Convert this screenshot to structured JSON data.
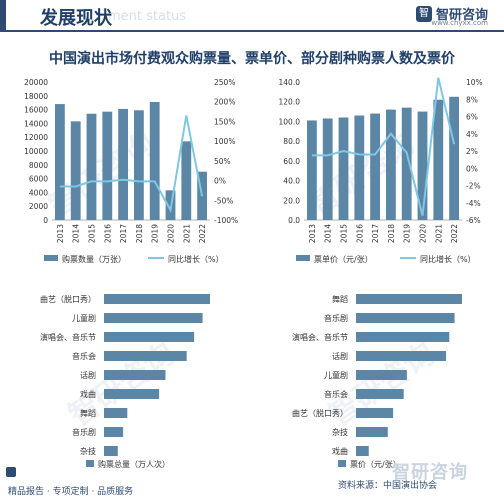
{
  "header": {
    "title": "发展现状",
    "ghost_text": "ment status",
    "brand": "智研咨询",
    "url": "www.chyxx.com"
  },
  "main_title": "中国演出市场付费观众购票量、票单价、部分剧种购票人数及票价",
  "footer": {
    "links": "精品报告 · 专项定制 · 品质服务",
    "source": "资料来源：中国演出协会",
    "brand": "智研咨询"
  },
  "watermark": "智研咨询",
  "colors": {
    "bar": "#5b86a6",
    "line": "#7ec8e3",
    "axis_text": "#333333",
    "grid": "#dddddd",
    "title": "#1f3e68",
    "brand_dark": "#2f4b73"
  },
  "chart_data": [
    {
      "type": "bar",
      "categories": [
        "2013",
        "2014",
        "2015",
        "2016",
        "2017",
        "2018",
        "2019",
        "2020",
        "2021",
        "2022"
      ],
      "series": [
        {
          "name": "购票数量（万张）",
          "axis": "left",
          "values": [
            16800,
            14300,
            15400,
            15700,
            16100,
            15900,
            17100,
            4300,
            11400,
            7000
          ]
        },
        {
          "name": "同比增长（%）",
          "axis": "right",
          "type": "line",
          "values": [
            -15,
            -15,
            -2,
            -2,
            2,
            -2,
            -2,
            -75,
            165,
            -40
          ]
        }
      ],
      "ylim_left": [
        0,
        20000
      ],
      "yticks_left": [
        "0",
        "2000",
        "4000",
        "6000",
        "8000",
        "10000",
        "12000",
        "14000",
        "16000",
        "18000",
        "20000"
      ],
      "ylim_right": [
        -100,
        250
      ],
      "yticks_right": [
        "-100%",
        "-50%",
        "0%",
        "50%",
        "100%",
        "150%",
        "200%",
        "250%"
      ]
    },
    {
      "type": "bar",
      "categories": [
        "2013",
        "2014",
        "2015",
        "2016",
        "2017",
        "2018",
        "2019",
        "2020",
        "2021",
        "2022"
      ],
      "series": [
        {
          "name": "票单价（元/张）",
          "axis": "left",
          "values": [
            101,
            103,
            104,
            106,
            108,
            112,
            114,
            110,
            122,
            125
          ]
        },
        {
          "name": "同比增长（%）",
          "axis": "right",
          "type": "line",
          "values": [
            1.5,
            1.5,
            2,
            1.6,
            1.6,
            4,
            1.8,
            -5.5,
            10.5,
            2.8
          ]
        }
      ],
      "ylim_left": [
        0,
        140
      ],
      "yticks_left": [
        "0.0",
        "20.0",
        "40.0",
        "60.0",
        "80.0",
        "100.0",
        "120.0",
        "140.0"
      ],
      "ylim_right": [
        -6,
        10
      ],
      "yticks_right": [
        "-6%",
        "-4%",
        "-2%",
        "0%",
        "2%",
        "4%",
        "6%",
        "8%",
        "10%"
      ]
    },
    {
      "type": "bar",
      "orientation": "horizontal",
      "categories": [
        "曲艺（脱口秀）",
        "儿童剧",
        "演唱会、音乐节",
        "音乐会",
        "话剧",
        "戏曲",
        "舞蹈",
        "音乐剧",
        "杂技"
      ],
      "values": [
        100,
        93,
        85,
        78,
        58,
        52,
        22,
        18,
        13
      ],
      "legend": "购票总量（万人次）"
    },
    {
      "type": "bar",
      "orientation": "horizontal",
      "categories": [
        "舞蹈",
        "音乐剧",
        "演唱会、音乐节",
        "话剧",
        "儿童剧",
        "音乐会",
        "曲艺（脱口秀）",
        "杂技",
        "戏曲"
      ],
      "values": [
        100,
        93,
        88,
        85,
        48,
        45,
        35,
        30,
        12
      ],
      "legend": "票价（元/张）"
    }
  ]
}
